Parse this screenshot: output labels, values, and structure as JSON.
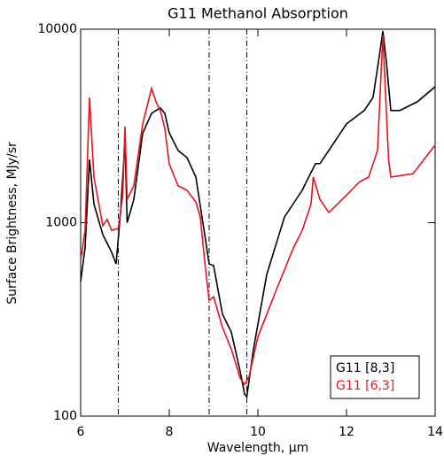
{
  "chart_data": {
    "type": "line",
    "title": "G11 Methanol Absorption",
    "xlabel": "Wavelength, μm",
    "ylabel": "Surface Brightness, MJy/sr",
    "xlim": [
      6,
      14
    ],
    "xticks": [
      6,
      8,
      10,
      12,
      14
    ],
    "ylim": [
      100,
      10000
    ],
    "yticks": [
      100,
      1000,
      10000
    ],
    "log_y": true,
    "vlines": [
      6.85,
      8.9,
      9.75
    ],
    "legend": "lower right",
    "series": [
      {
        "name": "G11 [8,3]",
        "color": "#000000",
        "x": [
          6.0,
          6.1,
          6.2,
          6.3,
          6.5,
          6.7,
          6.8,
          6.9,
          7.0,
          7.05,
          7.2,
          7.4,
          7.6,
          7.7,
          7.8,
          7.9,
          8.0,
          8.2,
          8.4,
          8.6,
          8.8,
          8.9,
          9.0,
          9.2,
          9.4,
          9.6,
          9.7,
          9.75,
          9.9,
          10.2,
          10.6,
          11.0,
          11.3,
          11.4,
          11.6,
          12.0,
          12.4,
          12.6,
          12.75,
          12.82,
          12.9,
          13.0,
          13.2,
          13.6,
          14.0
        ],
        "values": [
          497,
          741,
          2120,
          1250,
          867,
          703,
          612,
          1130,
          2620,
          1000,
          1320,
          2900,
          3670,
          3800,
          3920,
          3670,
          2910,
          2360,
          2170,
          1720,
          867,
          612,
          600,
          337,
          272,
          170,
          130,
          126,
          222,
          540,
          1070,
          1470,
          2020,
          2020,
          2360,
          3240,
          3800,
          4440,
          7520,
          9790,
          6770,
          3800,
          3800,
          4220,
          5040
        ]
      },
      {
        "name": "G11 [6,3]",
        "color": "#e8141c",
        "x": [
          6.0,
          6.1,
          6.2,
          6.3,
          6.5,
          6.6,
          6.7,
          6.85,
          6.95,
          7.0,
          7.05,
          7.2,
          7.4,
          7.6,
          7.7,
          7.8,
          7.9,
          8.0,
          8.2,
          8.4,
          8.6,
          8.7,
          8.8,
          8.9,
          9.0,
          9.2,
          9.4,
          9.6,
          9.7,
          9.8,
          10.0,
          10.4,
          10.8,
          11.0,
          11.2,
          11.25,
          11.4,
          11.6,
          11.8,
          12.0,
          12.3,
          12.5,
          12.7,
          12.82,
          12.95,
          13.0,
          13.2,
          13.5,
          14.0
        ],
        "values": [
          636,
          911,
          4440,
          1720,
          965,
          1040,
          911,
          934,
          1390,
          3140,
          1320,
          1550,
          3240,
          4940,
          4220,
          3800,
          3070,
          2010,
          1550,
          1470,
          1280,
          1070,
          630,
          396,
          415,
          288,
          222,
          157,
          146,
          160,
          257,
          440,
          740,
          911,
          1250,
          1720,
          1320,
          1130,
          1250,
          1390,
          1630,
          1720,
          2360,
          9290,
          2120,
          1720,
          1750,
          1790,
          2520
        ]
      }
    ]
  }
}
